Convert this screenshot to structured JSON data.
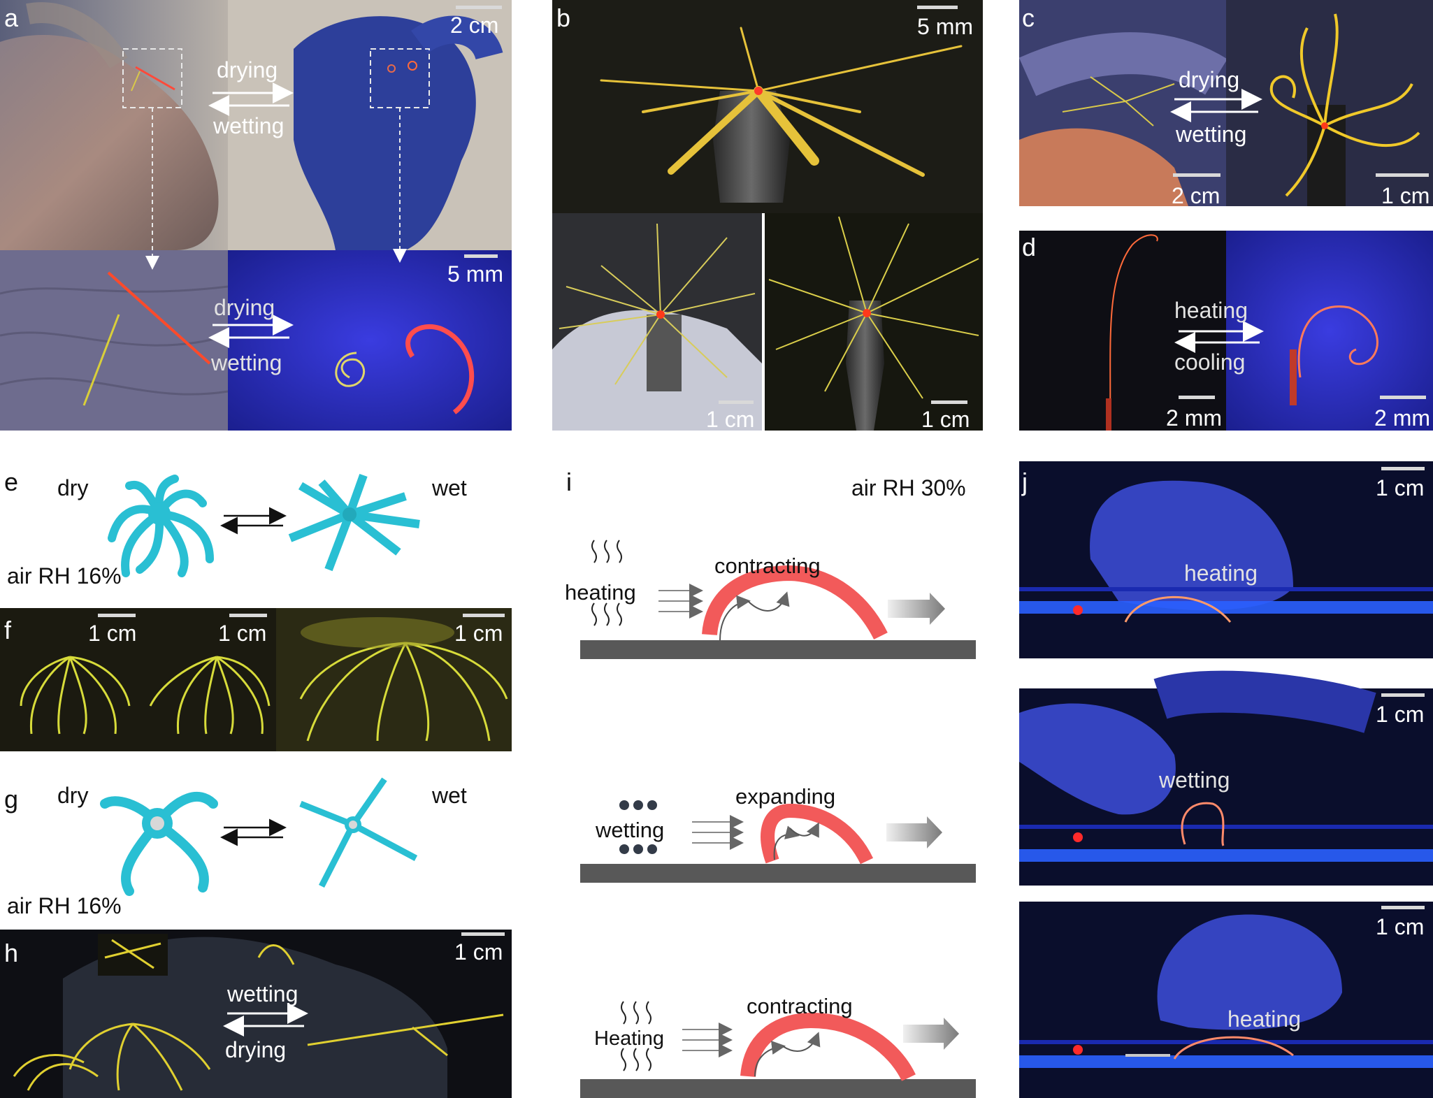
{
  "panels": {
    "a": {
      "letter": "a",
      "top_scale": "2 cm",
      "bottom_scale": "5 mm",
      "top_arrow_top": "drying",
      "top_arrow_bottom": "wetting",
      "bottom_arrow_top": "drying",
      "bottom_arrow_bottom": "wetting"
    },
    "b": {
      "letter": "b",
      "top_scale": "5 mm",
      "left_scale": "1 cm",
      "right_scale": "1 cm"
    },
    "c": {
      "letter": "c",
      "arrow_top": "drying",
      "arrow_bottom": "wetting",
      "left_scale": "2 cm",
      "right_scale": "1 cm"
    },
    "d": {
      "letter": "d",
      "arrow_top": "heating",
      "arrow_bottom": "cooling",
      "left_scale": "2 mm",
      "right_scale": "2 mm"
    },
    "e": {
      "letter": "e",
      "dry": "dry",
      "wet": "wet",
      "rh": "air RH 16%"
    },
    "f": {
      "letter": "f",
      "scales": [
        "1 cm",
        "1 cm",
        "1 cm"
      ]
    },
    "g": {
      "letter": "g",
      "dry": "dry",
      "wet": "wet",
      "rh": "air RH 16%"
    },
    "h": {
      "letter": "h",
      "scale": "1 cm",
      "arrow_top": "wetting",
      "arrow_bottom": "drying"
    },
    "i": {
      "letter": "i",
      "rh": "air RH 30%",
      "steps": [
        {
          "stimulus": "heating",
          "action": "contracting"
        },
        {
          "stimulus": "wetting",
          "action": "expanding"
        },
        {
          "stimulus": "Heating",
          "action": "contracting"
        }
      ]
    },
    "j": {
      "letter": "j",
      "frames": [
        {
          "scale": "1 cm",
          "label": "heating"
        },
        {
          "scale": "1 cm",
          "label": "wetting"
        },
        {
          "scale": "1 cm",
          "label": "heating"
        }
      ]
    }
  },
  "colors": {
    "accent_red": "#f25a5a",
    "cyan_model": "#29bfd3",
    "substrate": "#585858",
    "uv_blue": "#1f2fd0",
    "fiber_yellow": "#e8d02a"
  }
}
